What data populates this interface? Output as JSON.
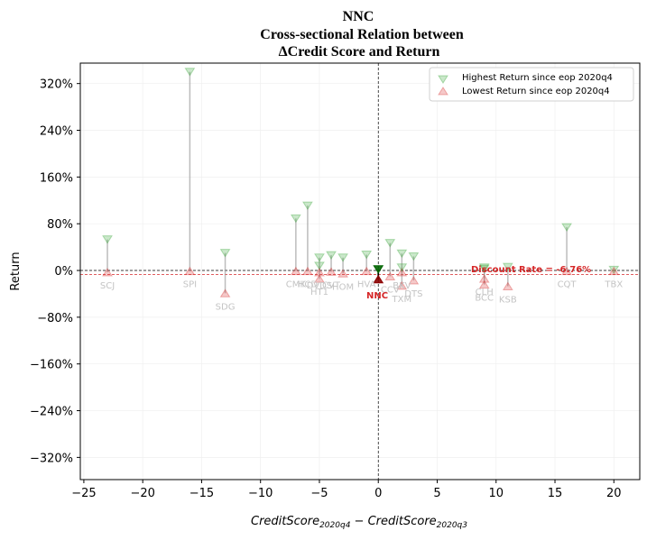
{
  "chart_data": {
    "type": "scatter",
    "title_lines": [
      "NNC",
      "Cross-sectional Relation between",
      "ΔCredit Score and Return"
    ],
    "xlabel": "CreditScore_2020q4 − CreditScore_2020q3",
    "ylabel": "Return",
    "xlim": [
      -25.3,
      22.2
    ],
    "ylim": [
      -358,
      355
    ],
    "xticks": [
      -25,
      -20,
      -15,
      -10,
      -5,
      0,
      5,
      10,
      15,
      20
    ],
    "xtick_labels": [
      "−25",
      "−20",
      "−15",
      "−10",
      "−5",
      "0",
      "5",
      "10",
      "15",
      "20"
    ],
    "yticks": [
      320,
      240,
      160,
      80,
      0,
      -80,
      -160,
      -240,
      -320
    ],
    "ytick_labels": [
      "320%",
      "240%",
      "160%",
      "80%",
      "0%",
      "−80%",
      "−160%",
      "−240%",
      "−320%"
    ],
    "grid": true,
    "legend_position": "top-right",
    "legend": [
      "Highest Return since eop 2020q4",
      "Lowest Return since eop 2020q4"
    ],
    "colors": {
      "high": "#2ca02c",
      "low": "#d62728",
      "stem": "#a0a0a0",
      "target": "#8b0000",
      "discount": "#d62728"
    },
    "discount_label": "Discount Rate = -6.76%",
    "discount_rate": -6.76,
    "target": {
      "label": "NNC",
      "x": 0,
      "high": 2,
      "low": -15
    },
    "points": [
      {
        "label": "SCJ",
        "x": -23,
        "high": 53,
        "low": -3
      },
      {
        "label": "SPI",
        "x": -16,
        "high": 340,
        "low": -1
      },
      {
        "label": "SDG",
        "x": -13,
        "high": 30,
        "low": -39
      },
      {
        "label": "CMK",
        "x": -7,
        "high": 89,
        "low": -1
      },
      {
        "label": "HCD",
        "x": -6,
        "high": 111,
        "low": -1
      },
      {
        "label": "HT1",
        "x": -5,
        "high": 22,
        "low": -14
      },
      {
        "label": "DVDS",
        "x": -5,
        "high": 8,
        "low": -3
      },
      {
        "label": "CVT",
        "x": -4,
        "high": 26,
        "low": -2
      },
      {
        "label": "HOM",
        "x": -3,
        "high": 22,
        "low": -5
      },
      {
        "label": "HVA",
        "x": -1,
        "high": 27,
        "low": -1
      },
      {
        "label": "CCV",
        "x": 1,
        "high": 47,
        "low": -10
      },
      {
        "label": "BKV",
        "x": 2,
        "high": 29,
        "low": -3
      },
      {
        "label": "TXM",
        "x": 2,
        "high": 5,
        "low": -26
      },
      {
        "label": "DTS",
        "x": 3,
        "high": 24,
        "low": -17
      },
      {
        "label": "CLH",
        "x": 9,
        "high": 5,
        "low": -14
      },
      {
        "label": "BCC",
        "x": 9,
        "high": 3,
        "low": -24
      },
      {
        "label": "KSB",
        "x": 11,
        "high": 6,
        "low": -27
      },
      {
        "label": "CQT",
        "x": 16,
        "high": 74,
        "low": -1
      },
      {
        "label": "TBX",
        "x": 20,
        "high": 1,
        "low": -1
      }
    ]
  }
}
